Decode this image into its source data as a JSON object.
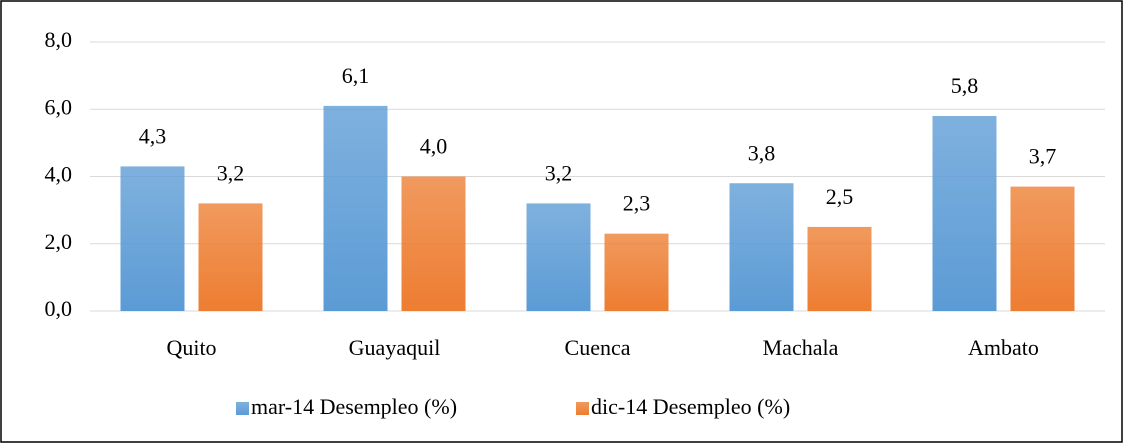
{
  "chart_data": {
    "type": "bar",
    "categories": [
      "Quito",
      "Guayaquil",
      "Cuenca",
      "Machala",
      "Ambato"
    ],
    "series": [
      {
        "name": "mar-14 Desempleo (%)",
        "color": "#5b9bd5",
        "values": [
          4.3,
          6.1,
          3.2,
          3.8,
          5.8
        ],
        "value_labels": [
          "4,3",
          "6,1",
          "3,2",
          "3,8",
          "5,8"
        ]
      },
      {
        "name": "dic-14 Desempleo (%)",
        "color": "#ed7d31",
        "values": [
          3.2,
          4.0,
          2.3,
          2.5,
          3.7
        ],
        "value_labels": [
          "3,2",
          "4,0",
          "2,3",
          "2,5",
          "3,7"
        ]
      }
    ],
    "ylim": [
      0,
      8
    ],
    "yticks": [
      {
        "value": 0,
        "label": "0,0"
      },
      {
        "value": 2,
        "label": "2,0"
      },
      {
        "value": 4,
        "label": "4,0"
      },
      {
        "value": 6,
        "label": "6,0"
      },
      {
        "value": 8,
        "label": "8,0"
      }
    ],
    "grid": true,
    "legend": "bottom"
  }
}
